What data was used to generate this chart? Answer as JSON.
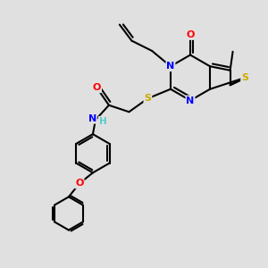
{
  "bg_color": "#e0e0e0",
  "bond_color": "#000000",
  "atom_colors": {
    "O": "#ff0000",
    "N": "#0000ff",
    "S": "#ccaa00",
    "C": "#000000",
    "H": "#55cccc"
  },
  "figsize": [
    3.0,
    3.0
  ],
  "dpi": 100
}
